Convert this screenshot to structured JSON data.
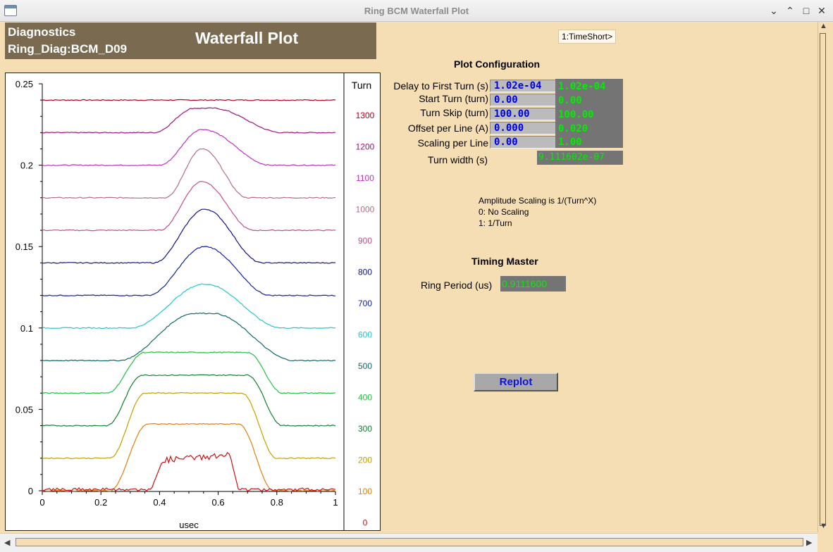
{
  "window": {
    "title": "Ring BCM Waterfall Plot",
    "controls": {
      "minimize": "⌄",
      "restore": "⌃",
      "maximize": "□",
      "close": "✕"
    }
  },
  "header": {
    "line1": "Diagnostics",
    "line2": "Ring_Diag:BCM_D09",
    "title": "Waterfall Plot"
  },
  "timeshort_button": "1:TimeShort>",
  "plot_config": {
    "title": "Plot Configuration",
    "rows": [
      {
        "label": "Delay to First Turn (s)",
        "input": "1.02e-04",
        "readback": "1.02e-04"
      },
      {
        "label": "Start Turn (turn)",
        "input": "0.00",
        "readback": "0.00"
      },
      {
        "label": "Turn Skip (turn)",
        "input": "100.00",
        "readback": "100.00"
      },
      {
        "label": "Offset per Line (A)",
        "input": "0.000",
        "readback": "0.020"
      },
      {
        "label": "Scaling per Line",
        "input": "0.00",
        "readback": "1.00"
      }
    ],
    "turn_width_label": "Turn width (s)",
    "turn_width_value": "9.111602e-07"
  },
  "scaling_notes": [
    "Amplitude Scaling is 1/(Turn^X)",
    "0: No Scaling",
    "1: 1/Turn"
  ],
  "timing": {
    "title": "Timing Master",
    "ring_period_label": "Ring Period (us)",
    "ring_period_value": "0.9111600"
  },
  "replot_button": "Replot",
  "chart_data": {
    "type": "line",
    "title": "",
    "xlabel": "usec",
    "ylabel": "",
    "xlim": [
      0,
      1
    ],
    "ylim": [
      0,
      0.25
    ],
    "x_ticks": [
      "0",
      "0.2",
      "0.4",
      "0.6",
      "0.8",
      "1"
    ],
    "y_ticks": [
      "0",
      "0.05",
      "0.1",
      "0.15",
      "0.2",
      "0.25"
    ],
    "legend_title": "Turn",
    "series": [
      {
        "name": "1300",
        "color": "#b00020",
        "baseline": 0.24,
        "peak": 0.0,
        "start": 0.0,
        "rise_end": 0.0,
        "fall_start": 1.0,
        "end": 1.0,
        "shape": "flat"
      },
      {
        "name": "1200",
        "color": "#a01080",
        "baseline": 0.22,
        "peak": 0.015,
        "start": 0.38,
        "rise_end": 0.52,
        "fall_start": 0.58,
        "end": 0.82,
        "shape": "trap"
      },
      {
        "name": "1100",
        "color": "#c030c0",
        "baseline": 0.2,
        "peak": 0.022,
        "start": 0.4,
        "rise_end": 0.54,
        "fall_start": 0.55,
        "end": 0.78,
        "shape": "peak"
      },
      {
        "name": "1000",
        "color": "#b07080",
        "baseline": 0.18,
        "peak": 0.03,
        "start": 0.42,
        "rise_end": 0.54,
        "fall_start": 0.55,
        "end": 0.7,
        "shape": "peak"
      },
      {
        "name": "900",
        "color": "#c0508a",
        "baseline": 0.16,
        "peak": 0.03,
        "start": 0.4,
        "rise_end": 0.54,
        "fall_start": 0.55,
        "end": 0.72,
        "shape": "peak"
      },
      {
        "name": "800",
        "color": "#10108c",
        "baseline": 0.14,
        "peak": 0.033,
        "start": 0.38,
        "rise_end": 0.55,
        "fall_start": 0.56,
        "end": 0.75,
        "shape": "peak"
      },
      {
        "name": "700",
        "color": "#1020a0",
        "baseline": 0.12,
        "peak": 0.03,
        "start": 0.36,
        "rise_end": 0.55,
        "fall_start": 0.56,
        "end": 0.78,
        "shape": "peak"
      },
      {
        "name": "600",
        "color": "#20c8c8",
        "baseline": 0.1,
        "peak": 0.027,
        "start": 0.3,
        "rise_end": 0.55,
        "fall_start": 0.56,
        "end": 0.82,
        "shape": "peak"
      },
      {
        "name": "500",
        "color": "#106868",
        "baseline": 0.08,
        "peak": 0.029,
        "start": 0.26,
        "rise_end": 0.52,
        "fall_start": 0.58,
        "end": 0.86,
        "shape": "trap"
      },
      {
        "name": "400",
        "color": "#20c040",
        "baseline": 0.06,
        "peak": 0.025,
        "start": 0.22,
        "rise_end": 0.35,
        "fall_start": 0.7,
        "end": 0.82,
        "shape": "trap"
      },
      {
        "name": "300",
        "color": "#108030",
        "baseline": 0.04,
        "peak": 0.031,
        "start": 0.22,
        "rise_end": 0.34,
        "fall_start": 0.7,
        "end": 0.82,
        "shape": "trap"
      },
      {
        "name": "200",
        "color": "#c0a000",
        "baseline": 0.02,
        "peak": 0.04,
        "start": 0.23,
        "rise_end": 0.35,
        "fall_start": 0.68,
        "end": 0.8,
        "shape": "trap"
      },
      {
        "name": "100",
        "color": "#e08010",
        "baseline": 0.0,
        "peak": 0.041,
        "start": 0.23,
        "rise_end": 0.36,
        "fall_start": 0.67,
        "end": 0.79,
        "shape": "trap"
      },
      {
        "name": "0",
        "color": "#d01010",
        "baseline": 0.0,
        "peak": 0.022,
        "start": 0.37,
        "rise_end": 0.41,
        "fall_start": 0.64,
        "end": 0.67,
        "shape": "noisy"
      }
    ]
  }
}
